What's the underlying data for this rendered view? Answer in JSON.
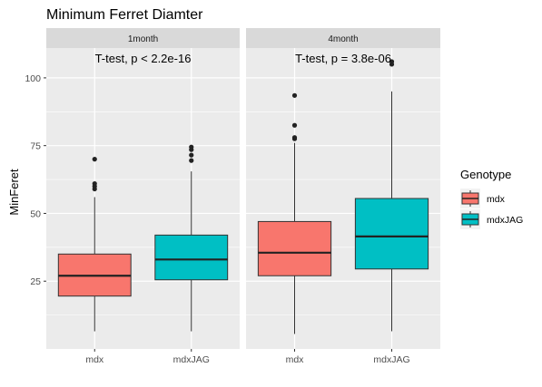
{
  "chart_data": {
    "type": "boxplot",
    "title": "Minimum Ferret Diamter",
    "xlabel": "",
    "ylabel": "MinFeret",
    "ylim": [
      0,
      111
    ],
    "yticks": [
      25,
      50,
      75,
      100
    ],
    "grid": true,
    "legend": {
      "title": "Genotype",
      "placement": "right",
      "entries": [
        {
          "name": "mdx",
          "color": "#F8766D"
        },
        {
          "name": "mdxJAG",
          "color": "#00BFC4"
        }
      ]
    },
    "panels": [
      {
        "strip": "1month",
        "annotation": "T-test, p < 2.2e-16",
        "categories": [
          "mdx",
          "mdxJAG"
        ],
        "boxes": [
          {
            "category": "mdx",
            "min": 6.5,
            "q1": 19.5,
            "median": 27,
            "q3": 35,
            "max": 56,
            "outliers": [
              59,
              60,
              61,
              70
            ]
          },
          {
            "category": "mdxJAG",
            "min": 6.5,
            "q1": 25.5,
            "median": 33,
            "q3": 42,
            "max": 65.5,
            "outliers": [
              69.5,
              71.5,
              73.5,
              74.5
            ]
          }
        ]
      },
      {
        "strip": "4month",
        "annotation": "T-test, p = 3.8e-06",
        "categories": [
          "mdx",
          "mdxJAG"
        ],
        "boxes": [
          {
            "category": "mdx",
            "min": 5.5,
            "q1": 27,
            "median": 35.5,
            "q3": 47,
            "max": 76,
            "outliers": [
              77.5,
              78,
              82.5,
              93.5
            ]
          },
          {
            "category": "mdxJAG",
            "min": 6.5,
            "q1": 29.5,
            "median": 41.5,
            "q3": 55.5,
            "max": 95,
            "outliers": [
              105,
              106
            ]
          }
        ]
      }
    ]
  }
}
